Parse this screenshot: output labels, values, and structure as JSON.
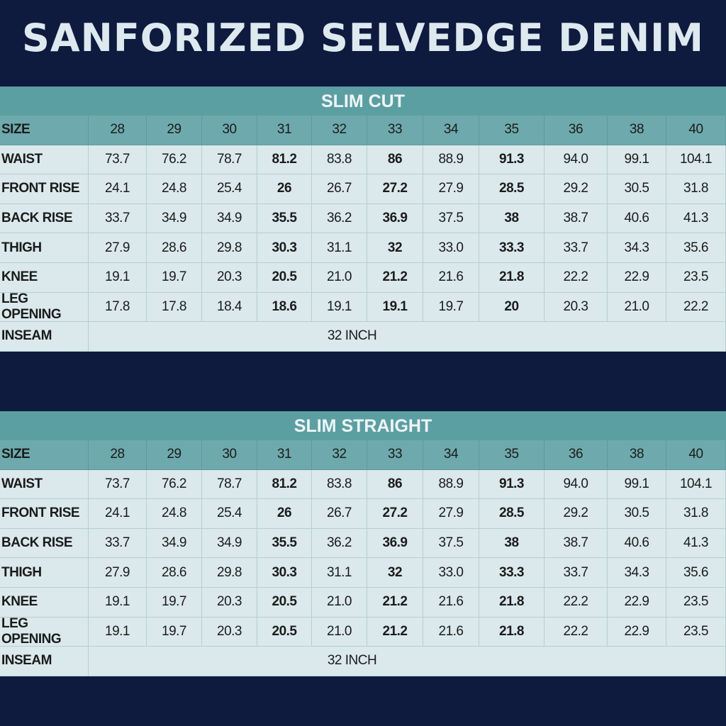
{
  "title": "SANFORIZED SELVEDGE DENIM",
  "tables": [
    {
      "title": "SLIM CUT",
      "header": [
        "SIZE",
        "28",
        "29",
        "30",
        "31",
        "32",
        "33",
        "34",
        "35",
        "36",
        "38",
        "40"
      ],
      "rows": [
        [
          "WAIST",
          "73.7",
          "76.2",
          "78.7",
          "81.2",
          "83.8",
          "86",
          "88.9",
          "91.3",
          "94.0",
          "99.1",
          "104.1"
        ],
        [
          "FRONT RISE",
          "24.1",
          "24.8",
          "25.4",
          "26",
          "26.7",
          "27.2",
          "27.9",
          "28.5",
          "29.2",
          "30.5",
          "31.8"
        ],
        [
          "BACK RISE",
          "33.7",
          "34.9",
          "34.9",
          "35.5",
          "36.2",
          "36.9",
          "37.5",
          "38",
          "38.7",
          "40.6",
          "41.3"
        ],
        [
          "THIGH",
          "27.9",
          "28.6",
          "29.8",
          "30.3",
          "31.1",
          "32",
          "33.0",
          "33.3",
          "33.7",
          "34.3",
          "35.6"
        ],
        [
          "KNEE",
          "19.1",
          "19.7",
          "20.3",
          "20.5",
          "21.0",
          "21.2",
          "21.6",
          "21.8",
          "22.2",
          "22.9",
          "23.5"
        ],
        [
          "LEG OPENING",
          "17.8",
          "17.8",
          "18.4",
          "18.6",
          "19.1",
          "19.1",
          "19.7",
          "20",
          "20.3",
          "21.0",
          "22.2"
        ]
      ],
      "inseam": {
        "label": "INSEAM",
        "value": "32 INCH"
      }
    },
    {
      "title": "SLIM STRAIGHT",
      "header": [
        "SIZE",
        "28",
        "29",
        "30",
        "31",
        "32",
        "33",
        "34",
        "35",
        "36",
        "38",
        "40"
      ],
      "rows": [
        [
          "WAIST",
          "73.7",
          "76.2",
          "78.7",
          "81.2",
          "83.8",
          "86",
          "88.9",
          "91.3",
          "94.0",
          "99.1",
          "104.1"
        ],
        [
          "FRONT RISE",
          "24.1",
          "24.8",
          "25.4",
          "26",
          "26.7",
          "27.2",
          "27.9",
          "28.5",
          "29.2",
          "30.5",
          "31.8"
        ],
        [
          "BACK RISE",
          "33.7",
          "34.9",
          "34.9",
          "35.5",
          "36.2",
          "36.9",
          "37.5",
          "38",
          "38.7",
          "40.6",
          "41.3"
        ],
        [
          "THIGH",
          "27.9",
          "28.6",
          "29.8",
          "30.3",
          "31.1",
          "32",
          "33.0",
          "33.3",
          "33.7",
          "34.3",
          "35.6"
        ],
        [
          "KNEE",
          "19.1",
          "19.7",
          "20.3",
          "20.5",
          "21.0",
          "21.2",
          "21.6",
          "21.8",
          "22.2",
          "22.9",
          "23.5"
        ],
        [
          "LEG OPENING",
          "19.1",
          "19.7",
          "20.3",
          "20.5",
          "21.0",
          "21.2",
          "21.6",
          "21.8",
          "22.2",
          "22.9",
          "23.5"
        ]
      ],
      "inseam": {
        "label": "INSEAM",
        "value": "32 INCH"
      }
    }
  ]
}
